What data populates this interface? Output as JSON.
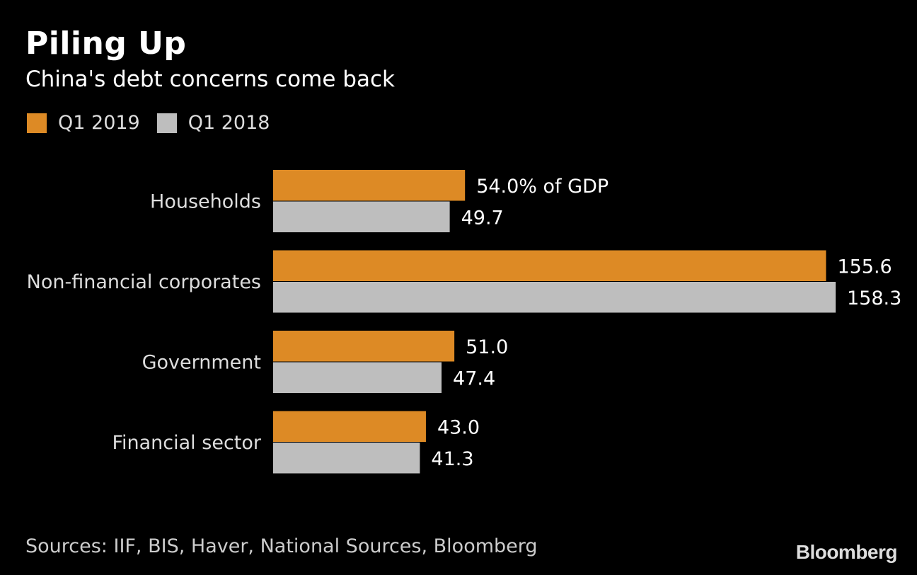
{
  "chart_data": {
    "type": "bar",
    "orientation": "horizontal",
    "title": "Piling Up",
    "subtitle": "China's debt concerns come back",
    "categories": [
      "Households",
      "Non-financial corporates",
      "Government",
      "Financial sector"
    ],
    "series": [
      {
        "name": "Q1 2019",
        "color": "#DD8A25",
        "values": [
          54.0,
          155.6,
          51.0,
          43.0
        ],
        "labels": [
          "54.0% of GDP",
          "155.6",
          "51.0",
          "43.0"
        ]
      },
      {
        "name": "Q1 2018",
        "color": "#BEBEBE",
        "values": [
          49.7,
          158.3,
          47.4,
          41.3
        ],
        "labels": [
          "49.7",
          "158.3",
          "47.4",
          "41.3"
        ]
      }
    ],
    "unit": "% of GDP",
    "xlim": [
      0,
      158.3
    ],
    "grid": false,
    "legend_position": "top-left"
  },
  "footer": {
    "source": "Sources: IIF, BIS, Haver, National Sources, Bloomberg",
    "brand": "Bloomberg"
  }
}
